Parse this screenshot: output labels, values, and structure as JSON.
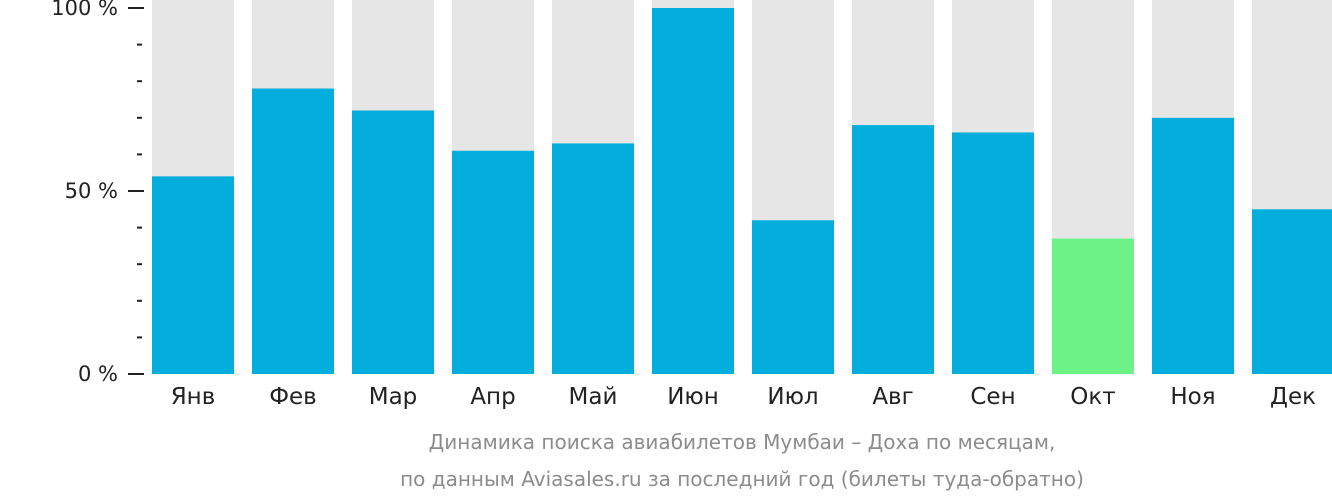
{
  "chart_data": {
    "type": "bar",
    "categories": [
      "Янв",
      "Фев",
      "Мар",
      "Апр",
      "Май",
      "Июн",
      "Июл",
      "Авг",
      "Сен",
      "Окт",
      "Ноя",
      "Дек"
    ],
    "values": [
      54,
      78,
      72,
      61,
      63,
      100,
      42,
      68,
      66,
      37,
      70,
      45
    ],
    "highlight_index": 9,
    "ylim": [
      0,
      100
    ],
    "yticks": [
      {
        "value": 0,
        "label": "0 %"
      },
      {
        "value": 50,
        "label": "50 %"
      },
      {
        "value": 100,
        "label": "100 %"
      }
    ],
    "minor_tick_step": 10,
    "title": "",
    "xlabel": "",
    "ylabel": "",
    "colors": {
      "bar": "#03aedc",
      "highlight": "#6cf287",
      "track": "#e6e6e6",
      "axis": "#222222"
    }
  },
  "caption": {
    "line1": "Динамика поиска авиабилетов Мумбаи – Доха по месяцам,",
    "line2": "по данным Aviasales.ru за последний год (билеты туда-обратно)"
  }
}
